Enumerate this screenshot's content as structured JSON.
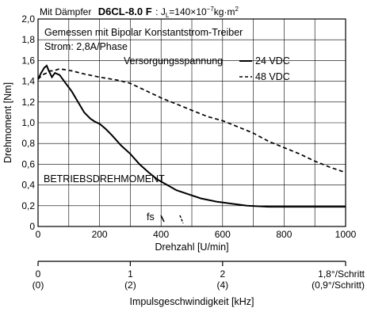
{
  "title": {
    "prefix": "Mit Dämpfer",
    "model": "D6CL-8.0 F",
    "inertia_prefix": ": J",
    "inertia_sub": "L",
    "inertia_mid": "=140×10",
    "inertia_exp": "−7",
    "inertia_unit": "kg·m",
    "inertia_unit_exp": "2"
  },
  "notes": {
    "line1": "Gemessen mit Bipolar Konstantstrom-Treiber",
    "line2": "Strom: 2,8A/Phase",
    "operating_torque": "BETRIEBSDREHMOMENT",
    "fs": "fs"
  },
  "chart_data": {
    "type": "line",
    "xlabel": "Drehzahl [U/min]",
    "ylabel": "Drehmoment [Nm]",
    "xlim": [
      0,
      1000
    ],
    "ylim": [
      0,
      2.0
    ],
    "x_ticks": [
      "0",
      "200",
      "400",
      "600",
      "800",
      "1000"
    ],
    "y_ticks": [
      "0",
      "0,2",
      "0,4",
      "0,6",
      "0,8",
      "1,0",
      "1,2",
      "1,4",
      "1,6",
      "1,8",
      "2,0"
    ],
    "grid": true,
    "legend_title": "Versorgungsspannung",
    "series": [
      {
        "name": "24 VDC",
        "style": "solid",
        "x": [
          0,
          10,
          20,
          28,
          35,
          45,
          55,
          70,
          90,
          110,
          130,
          150,
          170,
          185,
          200,
          220,
          240,
          270,
          300,
          330,
          360,
          390,
          420,
          450,
          490,
          530,
          580,
          630,
          680,
          750,
          850,
          1000
        ],
        "y": [
          1.42,
          1.48,
          1.53,
          1.55,
          1.5,
          1.44,
          1.48,
          1.46,
          1.38,
          1.3,
          1.2,
          1.1,
          1.04,
          1.01,
          0.99,
          0.94,
          0.88,
          0.78,
          0.7,
          0.6,
          0.52,
          0.45,
          0.4,
          0.35,
          0.31,
          0.27,
          0.24,
          0.22,
          0.2,
          0.19,
          0.19,
          0.19
        ]
      },
      {
        "name": "48 VDC",
        "style": "dashed",
        "x": [
          0,
          10,
          20,
          30,
          40,
          50,
          70,
          90,
          110,
          150,
          200,
          260,
          300,
          350,
          400,
          450,
          500,
          550,
          600,
          650,
          700,
          750,
          800,
          850,
          900,
          950,
          1000
        ],
        "y": [
          1.42,
          1.45,
          1.47,
          1.48,
          1.5,
          1.5,
          1.52,
          1.51,
          1.5,
          1.47,
          1.44,
          1.41,
          1.38,
          1.31,
          1.24,
          1.18,
          1.12,
          1.06,
          1.02,
          0.96,
          0.9,
          0.82,
          0.76,
          0.7,
          0.63,
          0.57,
          0.52
        ]
      }
    ],
    "pulse_axis": {
      "label": "Impulsgeschwindigkeit [kHz]",
      "ticks": [
        {
          "at": 0,
          "top": "0",
          "bottom": "(0)"
        },
        {
          "at": 1,
          "top": "1",
          "bottom": "(2)"
        },
        {
          "at": 2,
          "top": "2",
          "bottom": "(4)"
        }
      ],
      "step_labels": {
        "top": "1,8°/Schritt",
        "bottom": "(0,9°/Schritt)"
      },
      "khz_per_1000rpm": 3.333
    }
  }
}
